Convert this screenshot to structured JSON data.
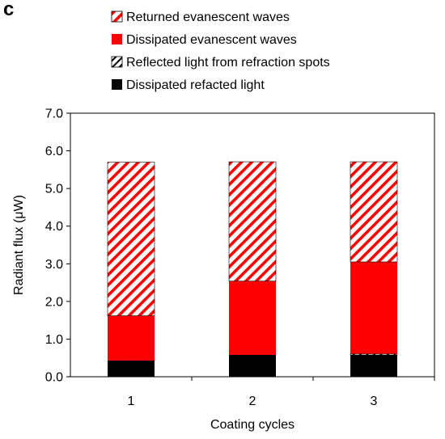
{
  "panel_label": "c",
  "colors": {
    "red": "#ff0000",
    "black": "#000000",
    "hatch_red": "#ff0000",
    "hatch_black": "#000000",
    "axis": "#000000"
  },
  "chart_data": {
    "type": "bar",
    "stacked": true,
    "categories": [
      "1",
      "2",
      "3"
    ],
    "series": [
      {
        "name": "Dissipated refacted light",
        "values": [
          0.43,
          0.58,
          0.58
        ],
        "fill": "solid-black"
      },
      {
        "name": "Reflected light from refraction spots",
        "values": [
          0.0,
          0.0,
          0.03
        ],
        "fill": "hatch-black"
      },
      {
        "name": "Dissipated evanescent waves",
        "values": [
          1.19,
          1.96,
          2.44
        ],
        "fill": "solid-red"
      },
      {
        "name": "Returned evanescent waves",
        "values": [
          4.08,
          3.17,
          2.66
        ],
        "fill": "hatch-red"
      }
    ],
    "legend_order": [
      "Returned evanescent waves",
      "Dissipated evanescent waves",
      "Reflected light from refraction spots",
      "Dissipated refacted light"
    ],
    "legend_position": "top",
    "xlabel": "Coating cycles",
    "ylabel": "Radiant flux (μW)",
    "ylim": [
      0,
      7
    ],
    "yticks": [
      "0.0",
      "1.0",
      "2.0",
      "3.0",
      "4.0",
      "5.0",
      "6.0",
      "7.0"
    ],
    "grid": false
  }
}
